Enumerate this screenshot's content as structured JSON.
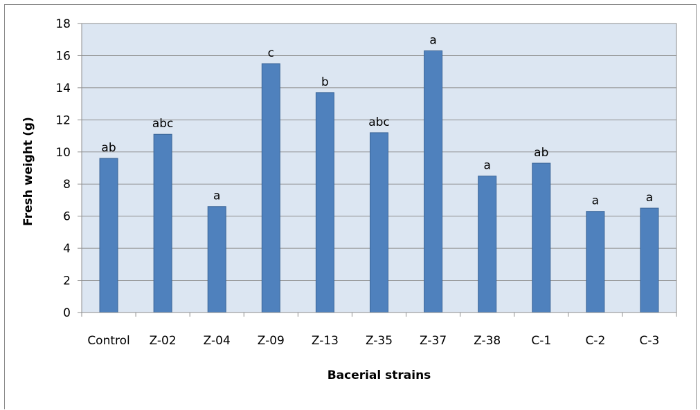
{
  "chart_data": {
    "type": "bar",
    "title": "",
    "xlabel": "Bacerial strains",
    "ylabel": "Fresh weight (g)",
    "ylim": [
      0,
      18
    ],
    "yticks": [
      0,
      2,
      4,
      6,
      8,
      10,
      12,
      14,
      16,
      18
    ],
    "grid": true,
    "legend": "none",
    "categories": [
      "Control",
      "Z-02",
      "Z-04",
      "Z-09",
      "Z-13",
      "Z-35",
      "Z-37",
      "Z-38",
      "C-1",
      "C-2",
      "C-3"
    ],
    "values": [
      9.6,
      11.1,
      6.6,
      15.5,
      13.7,
      11.2,
      16.3,
      8.5,
      9.3,
      6.3,
      6.5
    ],
    "data_labels": [
      "ab",
      "abc",
      "a",
      "c",
      "b",
      "abc",
      "a",
      "a",
      "ab",
      "a",
      "a"
    ],
    "colors": {
      "bar": "#4f81bd",
      "bar_edge": "#3a6496",
      "plot_bg": "#dce6f2",
      "grid": "#8c8c8c"
    }
  }
}
